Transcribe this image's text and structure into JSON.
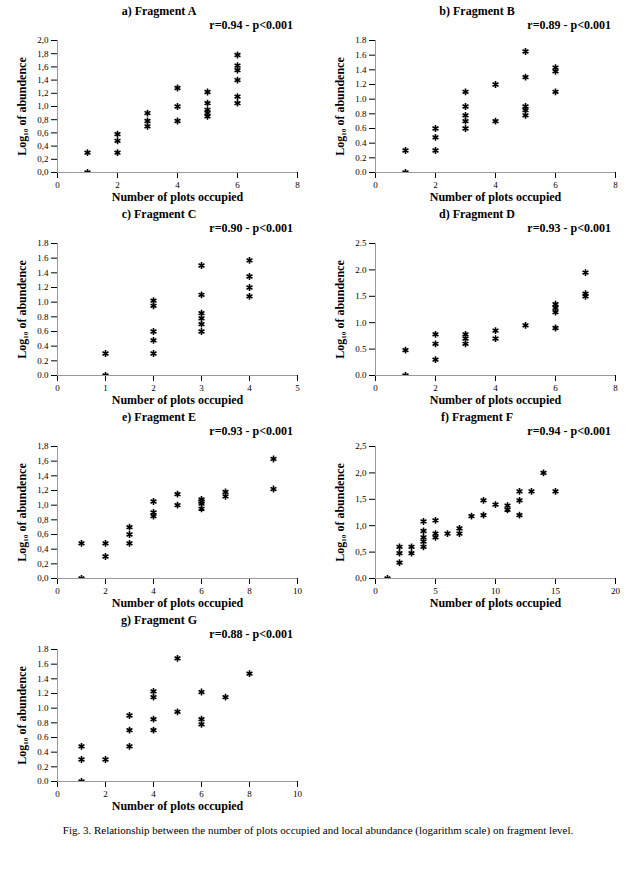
{
  "caption": "Fig. 3. Relationship between the number of plots occupied and local abundance (logarithm scale) on fragment level.",
  "chart_data": [
    {
      "type": "scatter",
      "title": "a) Fragment A",
      "annotation": "r=0.94 - p<0.001",
      "x_label": "Number of plots occupied",
      "y_label": "Log₁₀ of abundence",
      "marker": "asterisk",
      "color": "#000000",
      "x": [
        1,
        1,
        2,
        2,
        2,
        3,
        3,
        3,
        4,
        4,
        4,
        5,
        5,
        5,
        5,
        5,
        6,
        6,
        6,
        6,
        6,
        6
      ],
      "values": [
        0,
        0.3,
        0.3,
        0.48,
        0.58,
        0.7,
        0.78,
        0.9,
        0.78,
        1.0,
        1.28,
        0.85,
        0.9,
        0.95,
        1.05,
        1.22,
        1.05,
        1.15,
        1.4,
        1.55,
        1.62,
        1.78
      ],
      "xlim": [
        0,
        8
      ],
      "xticks": [
        0,
        2,
        4,
        6,
        8
      ],
      "ylim": [
        0,
        2
      ],
      "yticks": [
        {
          "value": 0,
          "label": "0,0"
        },
        {
          "value": 0.2,
          "label": "0,2"
        },
        {
          "value": 0.4,
          "label": "0,4"
        },
        {
          "value": 0.6,
          "label": "0,6"
        },
        {
          "value": 0.8,
          "label": "0,8"
        },
        {
          "value": 1,
          "label": "1,0"
        },
        {
          "value": 1.2,
          "label": "1,2"
        },
        {
          "value": 1.4,
          "label": "1,4"
        },
        {
          "value": 1.6,
          "label": "1,6"
        },
        {
          "value": 1.8,
          "label": "1,8"
        },
        {
          "value": 2,
          "label": "2,0"
        }
      ]
    },
    {
      "type": "scatter",
      "title": "b) Fragment B",
      "annotation": "r=0.89 - p<0.001",
      "x_label": "Number of plots occupied",
      "y_label": "Log₁₀ of abundence",
      "marker": "asterisk",
      "color": "#000000",
      "x": [
        1,
        1,
        2,
        2,
        2,
        3,
        3,
        3,
        3,
        3,
        4,
        4,
        5,
        5,
        5,
        5,
        5,
        6,
        6,
        6
      ],
      "values": [
        0,
        0.3,
        0.3,
        0.48,
        0.6,
        0.6,
        0.7,
        0.78,
        0.9,
        1.1,
        0.7,
        1.2,
        0.78,
        0.85,
        0.9,
        1.3,
        1.65,
        1.1,
        1.38,
        1.43
      ],
      "xlim": [
        0,
        8
      ],
      "xticks": [
        0,
        2,
        4,
        6,
        8
      ],
      "ylim": [
        0,
        1.8
      ],
      "yticks": [
        {
          "value": 0,
          "label": "0.0"
        },
        0.2,
        0.4,
        0.6,
        0.8,
        {
          "value": 1,
          "label": "1.0"
        },
        1.2,
        1.4,
        1.6,
        1.8
      ]
    },
    {
      "type": "scatter",
      "title": "c) Fragment C",
      "annotation": "r=0.90 - p<0.001",
      "x_label": "Number of plots occupied",
      "y_label": "Log₁₀ of abundence",
      "marker": "asterisk",
      "color": "#000000",
      "x": [
        1,
        1,
        2,
        2,
        2,
        2,
        2,
        3,
        3,
        3,
        3,
        3,
        3,
        4,
        4,
        4,
        4
      ],
      "values": [
        0,
        0.3,
        0.3,
        0.48,
        0.6,
        0.95,
        1.02,
        0.6,
        0.7,
        0.78,
        0.85,
        1.1,
        1.5,
        1.08,
        1.2,
        1.35,
        1.57
      ],
      "xlim": [
        0,
        5
      ],
      "xticks": [
        0,
        1,
        2,
        3,
        4,
        5
      ],
      "ylim": [
        0,
        1.8
      ],
      "yticks": [
        {
          "value": 0,
          "label": "0.0"
        },
        0.2,
        0.4,
        0.6,
        0.8,
        {
          "value": 1,
          "label": "1.0"
        },
        1.2,
        1.4,
        1.6,
        1.8
      ]
    },
    {
      "type": "scatter",
      "title": "d) Fragment D",
      "annotation": "r=0.93 - p<0.001",
      "x_label": "Number of plots occupied",
      "y_label": "Log₁₀ of abundence",
      "marker": "asterisk",
      "color": "#000000",
      "x": [
        1,
        1,
        2,
        2,
        2,
        3,
        3,
        3,
        4,
        4,
        5,
        6,
        6,
        6,
        6,
        7,
        7,
        7
      ],
      "values": [
        0,
        0.48,
        0.3,
        0.6,
        0.78,
        0.6,
        0.7,
        0.78,
        0.7,
        0.85,
        0.95,
        0.9,
        1.2,
        1.28,
        1.35,
        1.5,
        1.55,
        1.95
      ],
      "xlim": [
        0,
        8
      ],
      "xticks": [
        0,
        2,
        4,
        6,
        8
      ],
      "ylim": [
        0,
        2.5
      ],
      "yticks": [
        {
          "value": 0,
          "label": "0.0"
        },
        0.5,
        {
          "value": 1,
          "label": "1.0"
        },
        1.5,
        {
          "value": 2,
          "label": "2.0"
        },
        2.5
      ]
    },
    {
      "type": "scatter",
      "title": "e) Fragment E",
      "annotation": "r=0.93 - p<0.001",
      "x_label": "Number of plots occupied",
      "y_label": "Log₁₀ of abundence",
      "marker": "asterisk",
      "color": "#000000",
      "x": [
        1,
        1,
        2,
        2,
        3,
        3,
        3,
        4,
        4,
        4,
        5,
        5,
        6,
        6,
        6,
        6,
        7,
        7,
        9,
        9
      ],
      "values": [
        0,
        0.48,
        0.3,
        0.48,
        0.48,
        0.6,
        0.7,
        0.85,
        0.9,
        1.05,
        1.0,
        1.15,
        0.95,
        1.02,
        1.05,
        1.08,
        1.12,
        1.18,
        1.22,
        1.63
      ],
      "xlim": [
        0,
        10
      ],
      "xticks": [
        0,
        2,
        4,
        6,
        8,
        10
      ],
      "ylim": [
        0,
        1.8
      ],
      "yticks": [
        {
          "value": 0,
          "label": "0,0"
        },
        {
          "value": 0.2,
          "label": "0,2"
        },
        {
          "value": 0.4,
          "label": "0,4"
        },
        {
          "value": 0.6,
          "label": "0,6"
        },
        {
          "value": 0.8,
          "label": "0,8"
        },
        {
          "value": 1,
          "label": "1,0"
        },
        {
          "value": 1.2,
          "label": "1,2"
        },
        {
          "value": 1.4,
          "label": "1,4"
        },
        {
          "value": 1.6,
          "label": "1,6"
        },
        {
          "value": 1.8,
          "label": "1,8"
        }
      ]
    },
    {
      "type": "scatter",
      "title": "f) Fragment F",
      "annotation": "r=0.94 - p<0.001",
      "x_label": "Number of plots occupied",
      "y_label": "Log₁₀ of abundence",
      "marker": "asterisk",
      "color": "#000000",
      "x": [
        1,
        2,
        2,
        2,
        3,
        3,
        4,
        4,
        4,
        4,
        4,
        5,
        5,
        5,
        6,
        7,
        7,
        8,
        9,
        9,
        10,
        11,
        11,
        12,
        12,
        12,
        13,
        14,
        15
      ],
      "values": [
        0,
        0.3,
        0.48,
        0.6,
        0.48,
        0.6,
        0.6,
        0.7,
        0.78,
        0.9,
        1.08,
        0.78,
        0.85,
        1.1,
        0.85,
        0.85,
        0.95,
        1.18,
        1.2,
        1.48,
        1.4,
        1.3,
        1.38,
        1.2,
        1.48,
        1.65,
        1.65,
        2.0,
        1.65
      ],
      "xlim": [
        0,
        20
      ],
      "xticks": [
        0,
        5,
        10,
        15,
        20
      ],
      "ylim": [
        0,
        2.5
      ],
      "yticks": [
        {
          "value": 0,
          "label": "0,0"
        },
        {
          "value": 0.5,
          "label": "0,5"
        },
        {
          "value": 1,
          "label": "1,0"
        },
        {
          "value": 1.5,
          "label": "1,5"
        },
        {
          "value": 2,
          "label": "2,0"
        },
        {
          "value": 2.5,
          "label": "2,5"
        }
      ]
    },
    {
      "type": "scatter",
      "title": "g) Fragment G",
      "annotation": "r=0.88 - p<0.001",
      "x_label": "Number of plots occupied",
      "y_label": "Log₁₀ of abundence",
      "marker": "asterisk",
      "color": "#000000",
      "x": [
        1,
        1,
        1,
        2,
        3,
        3,
        3,
        4,
        4,
        4,
        4,
        5,
        5,
        6,
        6,
        6,
        7,
        8
      ],
      "values": [
        0,
        0.3,
        0.48,
        0.3,
        0.48,
        0.7,
        0.9,
        0.7,
        0.85,
        1.15,
        1.23,
        0.95,
        1.68,
        0.78,
        0.85,
        1.22,
        1.15,
        1.47
      ],
      "xlim": [
        0,
        10
      ],
      "xticks": [
        0,
        2,
        4,
        6,
        8,
        10
      ],
      "ylim": [
        0,
        1.8
      ],
      "yticks": [
        {
          "value": 0,
          "label": "0.0"
        },
        0.2,
        0.4,
        0.6,
        0.8,
        {
          "value": 1,
          "label": "1.0"
        },
        1.2,
        1.4,
        1.6,
        1.8
      ]
    }
  ]
}
